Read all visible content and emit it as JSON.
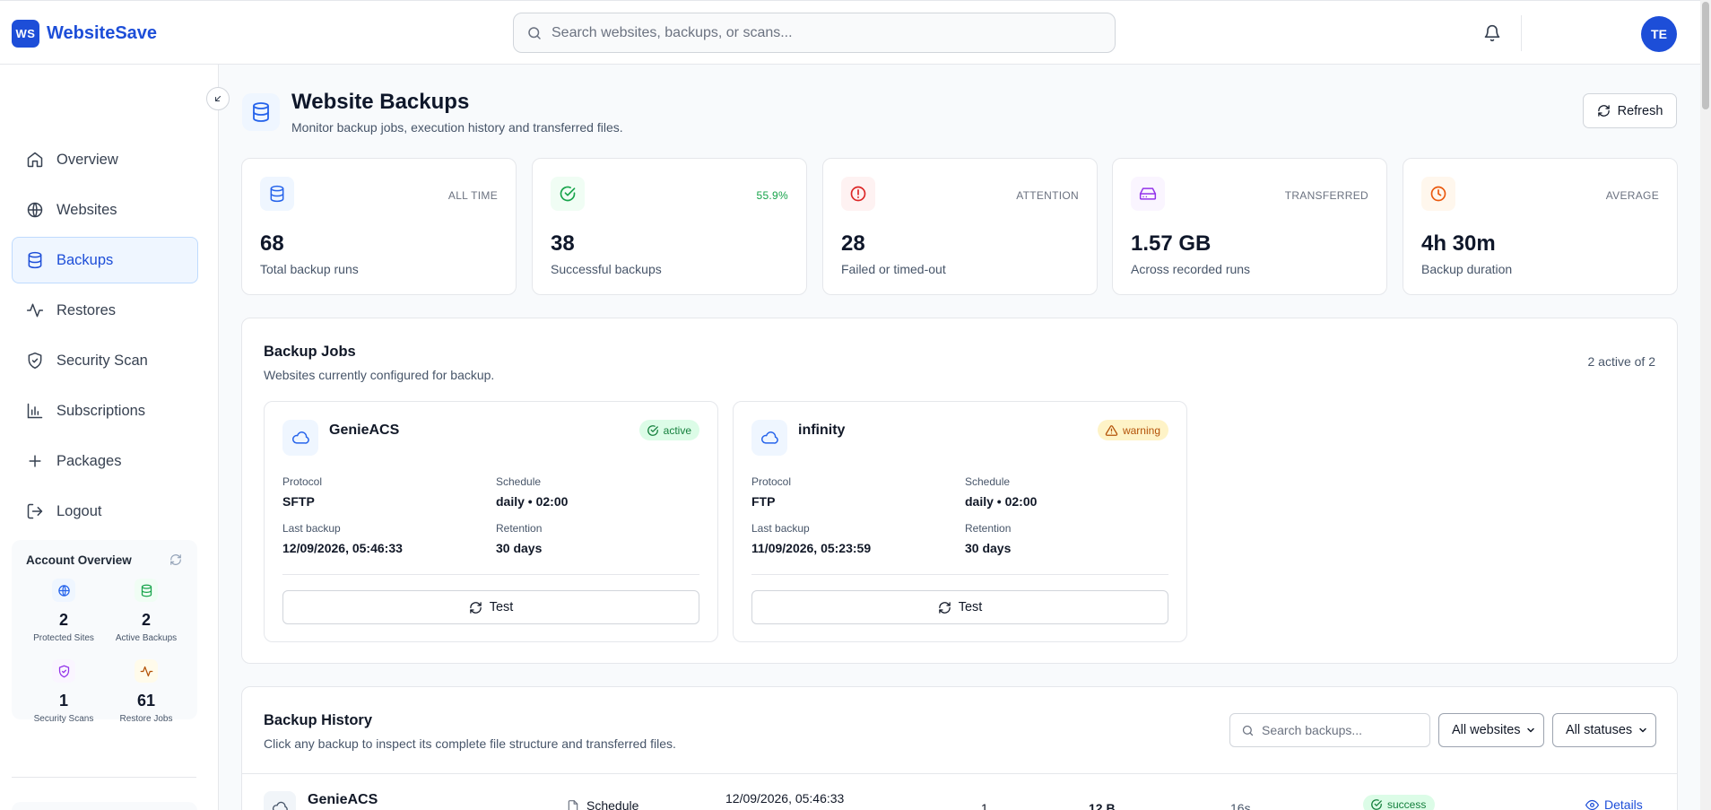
{
  "app": {
    "logo": "WS",
    "name": "WebsiteSave"
  },
  "header": {
    "search_placeholder": "Search websites, backups, or scans...",
    "avatar": "TE"
  },
  "sidebar": {
    "items": [
      {
        "label": "Overview",
        "icon": "home-icon"
      },
      {
        "label": "Websites",
        "icon": "globe-icon"
      },
      {
        "label": "Backups",
        "icon": "database-icon",
        "active": true
      },
      {
        "label": "Restores",
        "icon": "activity-icon"
      },
      {
        "label": "Security Scan",
        "icon": "shield-check-icon"
      },
      {
        "label": "Subscriptions",
        "icon": "bar-chart-icon"
      },
      {
        "label": "Packages",
        "icon": "plus-icon"
      },
      {
        "label": "Logout",
        "icon": "logout-icon"
      }
    ],
    "account_overview": {
      "title": "Account Overview",
      "stats": [
        {
          "value": "2",
          "label": "Protected Sites",
          "icon": "globe-icon"
        },
        {
          "value": "2",
          "label": "Active Backups",
          "icon": "database-icon"
        },
        {
          "value": "1",
          "label": "Security Scans",
          "icon": "shield-icon"
        },
        {
          "value": "61",
          "label": "Restore Jobs",
          "icon": "activity-icon"
        }
      ]
    }
  },
  "page": {
    "title": "Website Backups",
    "subtitle": "Monitor backup jobs, execution history and transferred files.",
    "refresh_label": "Refresh"
  },
  "stats": [
    {
      "tag": "ALL TIME",
      "value": "68",
      "label": "Total backup runs",
      "icon": "database-icon",
      "color": "#2563eb",
      "bg": "#eff6ff"
    },
    {
      "tag": "55.9%",
      "value": "38",
      "label": "Successful backups",
      "icon": "check-circle-icon",
      "color": "#16a34a",
      "bg": "#f0fdf4"
    },
    {
      "tag": "ATTENTION",
      "value": "28",
      "label": "Failed or timed-out",
      "icon": "alert-circle-icon",
      "color": "#dc2626",
      "bg": "#fef2f2"
    },
    {
      "tag": "TRANSFERRED",
      "value": "1.57 GB",
      "label": "Across recorded runs",
      "icon": "hard-drive-icon",
      "color": "#9333ea",
      "bg": "#faf5ff"
    },
    {
      "tag": "AVERAGE",
      "value": "4h 30m",
      "label": "Backup duration",
      "icon": "clock-icon",
      "color": "#ea580c",
      "bg": "#fff7ed"
    }
  ],
  "jobs": {
    "title": "Backup Jobs",
    "subtitle": "Websites currently configured for backup.",
    "count": "2 active of 2",
    "labels": {
      "protocol": "Protocol",
      "schedule": "Schedule",
      "last_backup": "Last backup",
      "retention": "Retention",
      "test": "Test"
    },
    "items": [
      {
        "name": "GenieACS",
        "status": "active",
        "protocol": "SFTP",
        "schedule": "daily • 02:00",
        "last_backup": "12/09/2026, 05:46:33",
        "retention": "30 days"
      },
      {
        "name": "infinity",
        "status": "warning",
        "protocol": "FTP",
        "schedule": "daily • 02:00",
        "last_backup": "11/09/2026, 05:23:59",
        "retention": "30 days"
      }
    ]
  },
  "history": {
    "title": "Backup History",
    "subtitle": "Click any backup to inspect its complete file structure and transferred files.",
    "search_placeholder": "Search backups...",
    "website_filter": "All websites",
    "status_filter": "All statuses",
    "rows": [
      {
        "name": "GenieACS",
        "trigger": "Schedule",
        "date": "12/09/2026, 05:46:33",
        "files": "1",
        "size": "12 B",
        "duration": "16s",
        "status": "success",
        "action": "Details"
      }
    ]
  }
}
